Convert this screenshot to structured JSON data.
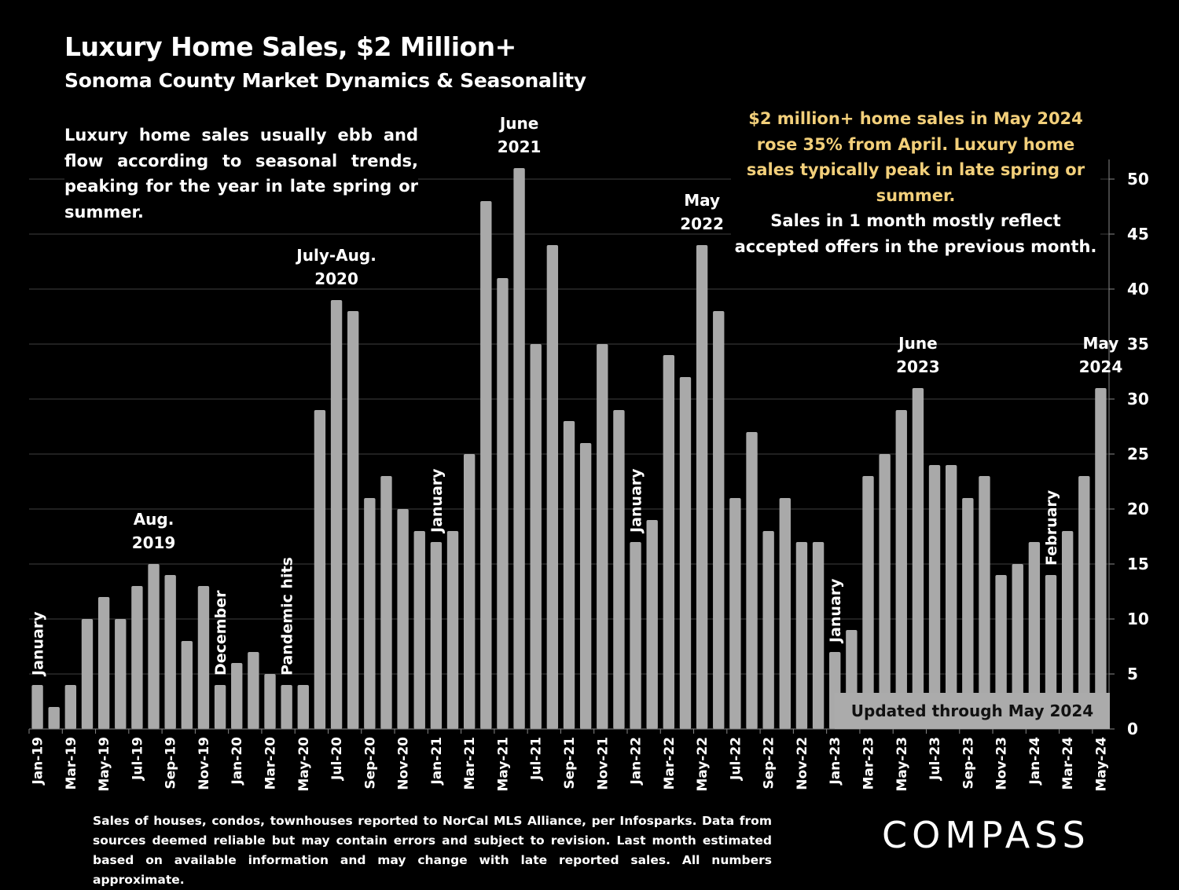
{
  "header": {
    "title": "Luxury Home Sales, $2 Million+",
    "subtitle": "Sonoma County Market Dynamics & Seasonality"
  },
  "notes": {
    "left": "Luxury home sales usually ebb and flow according to seasonal trends, peaking for the year in late spring or summer.",
    "gold": "$2 million+ home sales in May 2024 rose 35% from April. Luxury home sales typically peak in late spring or summer.",
    "white": "Sales in 1 month mostly reflect accepted offers in the previous month.",
    "updated": "Updated through May 2024"
  },
  "footnote": "Sales of houses, condos, townhouses reported to NorCal MLS Alliance, per Infosparks. Data from sources deemed reliable but may contain errors and subject to revision. Last month estimated based on available information and may change with late reported sales. All numbers approximate.",
  "logo": "COMPASS",
  "colors": {
    "bar": "#a9a9a9",
    "gold": "#f2cf7a",
    "background": "#000000",
    "grid": "#404040"
  },
  "chart_data": {
    "type": "bar",
    "title": "Luxury Home Sales, $2 Million+",
    "xlabel": "",
    "ylabel": "",
    "ylim": [
      0,
      50
    ],
    "yticks": [
      0,
      5,
      10,
      15,
      20,
      25,
      30,
      35,
      40,
      45,
      50
    ],
    "y_axis_side": "right",
    "grid": true,
    "categories": [
      "Jan-19",
      "Feb-19",
      "Mar-19",
      "Apr-19",
      "May-19",
      "Jun-19",
      "Jul-19",
      "Aug-19",
      "Sep-19",
      "Oct-19",
      "Nov-19",
      "Dec-19",
      "Jan-20",
      "Feb-20",
      "Mar-20",
      "Apr-20",
      "May-20",
      "Jun-20",
      "Jul-20",
      "Aug-20",
      "Sep-20",
      "Oct-20",
      "Nov-20",
      "Dec-20",
      "Jan-21",
      "Feb-21",
      "Mar-21",
      "Apr-21",
      "May-21",
      "Jun-21",
      "Jul-21",
      "Aug-21",
      "Sep-21",
      "Oct-21",
      "Nov-21",
      "Dec-21",
      "Jan-22",
      "Feb-22",
      "Mar-22",
      "Apr-22",
      "May-22",
      "Jun-22",
      "Jul-22",
      "Aug-22",
      "Sep-22",
      "Oct-22",
      "Nov-22",
      "Dec-22",
      "Jan-23",
      "Feb-23",
      "Mar-23",
      "Apr-23",
      "May-23",
      "Jun-23",
      "Jul-23",
      "Aug-23",
      "Sep-23",
      "Oct-23",
      "Nov-23",
      "Dec-23",
      "Jan-24",
      "Feb-24",
      "Mar-24",
      "Apr-24",
      "May-24"
    ],
    "tick_labels_shown_every": 2,
    "values": [
      4,
      2,
      4,
      10,
      12,
      10,
      13,
      15,
      14,
      8,
      13,
      4,
      6,
      7,
      5,
      4,
      4,
      29,
      39,
      38,
      21,
      23,
      20,
      18,
      17,
      18,
      25,
      48,
      41,
      51,
      35,
      44,
      28,
      26,
      35,
      29,
      17,
      19,
      34,
      32,
      44,
      38,
      21,
      27,
      18,
      21,
      17,
      17,
      7,
      9,
      23,
      25,
      29,
      31,
      24,
      24,
      21,
      23,
      14,
      15,
      17,
      14,
      18,
      23,
      31
    ],
    "annotations": [
      {
        "text": "January",
        "at": "Jan-19",
        "orientation": "vertical"
      },
      {
        "text": "Aug. 2019",
        "at": "Aug-19",
        "orientation": "horizontal"
      },
      {
        "text": "December",
        "at": "Dec-19",
        "orientation": "vertical"
      },
      {
        "text": "Pandemic hits",
        "at": "Apr-20",
        "orientation": "vertical"
      },
      {
        "text": "July-Aug. 2020",
        "at": "Jul-20",
        "orientation": "horizontal"
      },
      {
        "text": "January",
        "at": "Jan-21",
        "orientation": "vertical"
      },
      {
        "text": "June 2021",
        "at": "Jun-21",
        "orientation": "horizontal"
      },
      {
        "text": "January",
        "at": "Jan-22",
        "orientation": "vertical"
      },
      {
        "text": "May 2022",
        "at": "May-22",
        "orientation": "horizontal"
      },
      {
        "text": "January",
        "at": "Jan-23",
        "orientation": "vertical"
      },
      {
        "text": "June 2023",
        "at": "Jun-23",
        "orientation": "horizontal"
      },
      {
        "text": "February",
        "at": "Feb-24",
        "orientation": "vertical"
      },
      {
        "text": "May 2024",
        "at": "May-24",
        "orientation": "horizontal"
      }
    ]
  }
}
